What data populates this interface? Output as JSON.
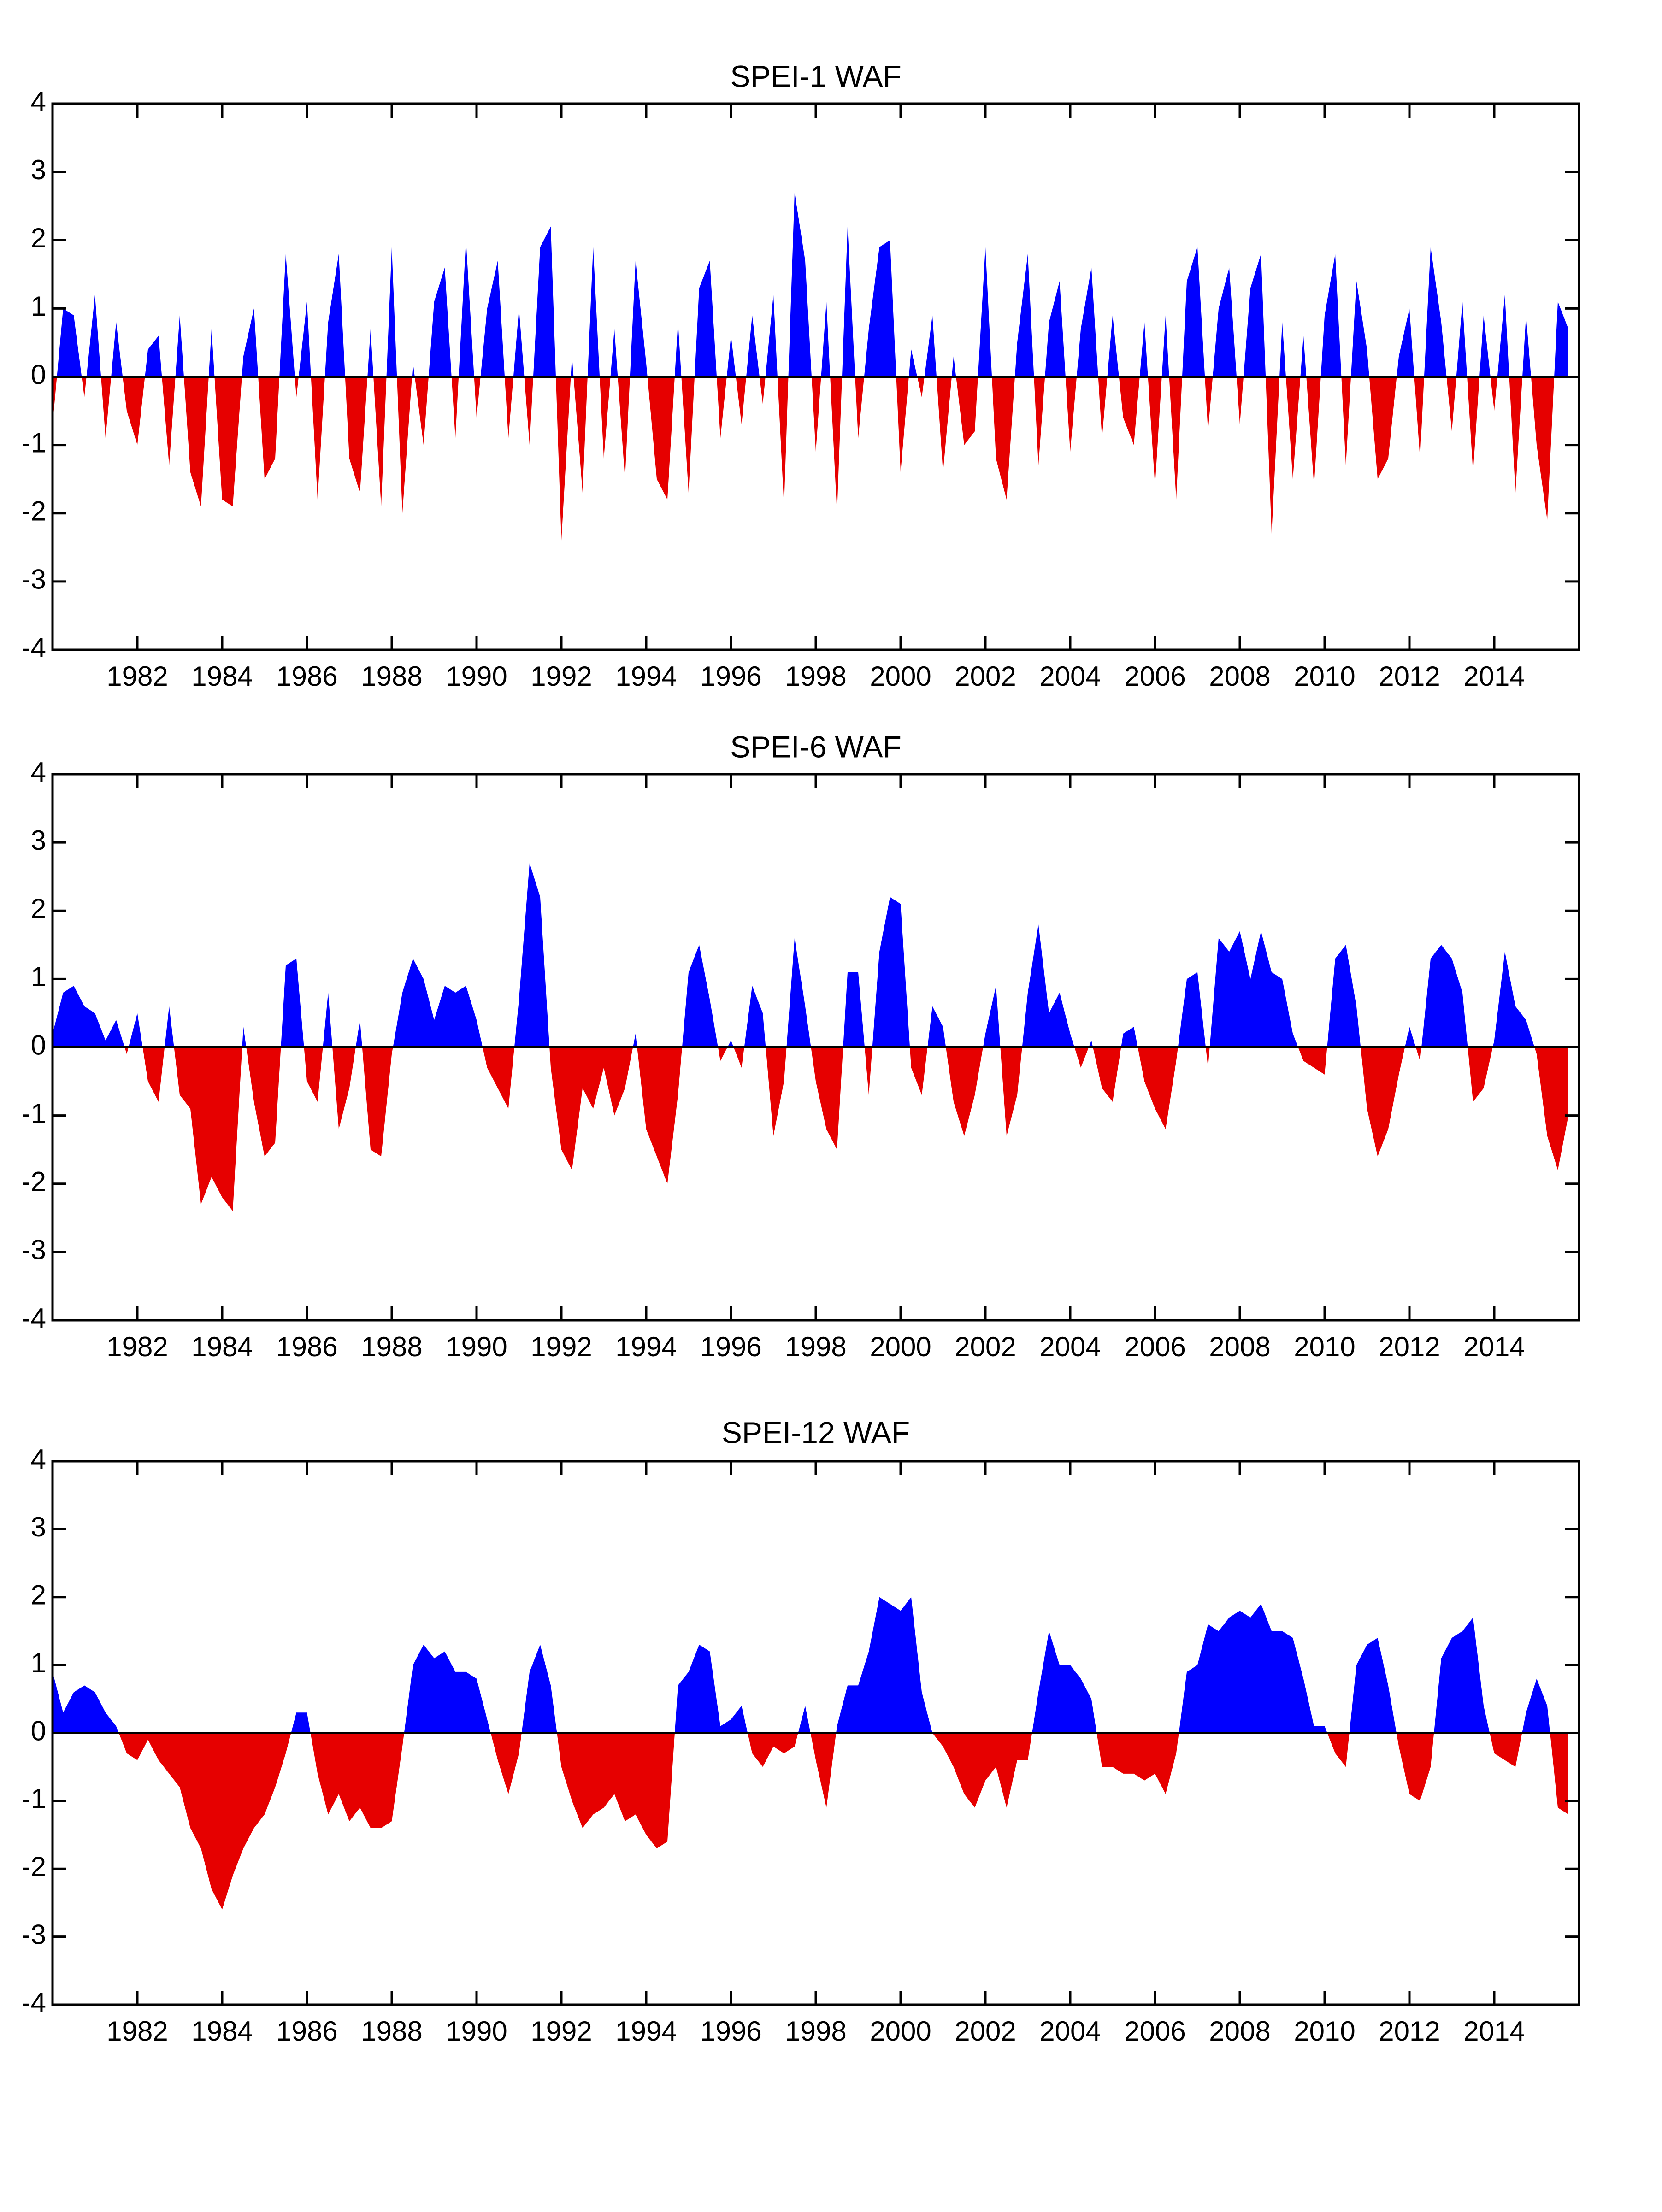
{
  "chart_data": [
    {
      "type": "area",
      "title": "SPEI-1 WAF",
      "pos_color": "#0000ff",
      "neg_color": "#e60000",
      "xlim": [
        1980,
        2016
      ],
      "ylim": [
        -4,
        4
      ],
      "yticks": [
        -4,
        -3,
        -2,
        -1,
        0,
        1,
        2,
        3,
        4
      ],
      "xticks": [
        1982,
        1984,
        1986,
        1988,
        1990,
        1992,
        1994,
        1996,
        1998,
        2000,
        2002,
        2004,
        2006,
        2008,
        2010,
        2012,
        2014
      ],
      "x": [
        1980,
        1980.25,
        1980.5,
        1980.75,
        1981,
        1981.25,
        1981.5,
        1981.75,
        1982,
        1982.25,
        1982.5,
        1982.75,
        1983,
        1983.25,
        1983.5,
        1983.75,
        1984,
        1984.25,
        1984.5,
        1984.75,
        1985,
        1985.25,
        1985.5,
        1985.75,
        1986,
        1986.25,
        1986.5,
        1986.75,
        1987,
        1987.25,
        1987.5,
        1987.75,
        1988,
        1988.25,
        1988.5,
        1988.75,
        1989,
        1989.25,
        1989.5,
        1989.75,
        1990,
        1990.25,
        1990.5,
        1990.75,
        1991,
        1991.25,
        1991.5,
        1991.75,
        1992,
        1992.25,
        1992.5,
        1992.75,
        1993,
        1993.25,
        1993.5,
        1993.75,
        1994,
        1994.25,
        1994.5,
        1994.75,
        1995,
        1995.25,
        1995.5,
        1995.75,
        1996,
        1996.25,
        1996.5,
        1996.75,
        1997,
        1997.25,
        1997.5,
        1997.75,
        1998,
        1998.25,
        1998.5,
        1998.75,
        1999,
        1999.25,
        1999.5,
        1999.75,
        2000,
        2000.25,
        2000.5,
        2000.75,
        2001,
        2001.25,
        2001.5,
        2001.75,
        2002,
        2002.25,
        2002.5,
        2002.75,
        2003,
        2003.25,
        2003.5,
        2003.75,
        2004,
        2004.25,
        2004.5,
        2004.75,
        2005,
        2005.25,
        2005.5,
        2005.75,
        2006,
        2006.25,
        2006.5,
        2006.75,
        2007,
        2007.25,
        2007.5,
        2007.75,
        2008,
        2008.25,
        2008.5,
        2008.75,
        2009,
        2009.25,
        2009.5,
        2009.75,
        2010,
        2010.25,
        2010.5,
        2010.75,
        2011,
        2011.25,
        2011.5,
        2011.75,
        2012,
        2012.25,
        2012.5,
        2012.75,
        2013,
        2013.25,
        2013.5,
        2013.75,
        2014,
        2014.25,
        2014.5,
        2014.75,
        2015,
        2015.25,
        2015.5,
        2015.75
      ],
      "values": [
        -0.7,
        1.0,
        0.9,
        -0.3,
        1.2,
        -0.9,
        0.8,
        -0.5,
        -1.0,
        0.4,
        0.6,
        -1.3,
        0.9,
        -1.4,
        -1.9,
        0.7,
        -1.8,
        -1.9,
        0.3,
        1.0,
        -1.5,
        -1.2,
        1.8,
        -0.3,
        1.1,
        -1.8,
        0.8,
        1.8,
        -1.2,
        -1.7,
        0.7,
        -1.9,
        1.9,
        -2.0,
        0.2,
        -1.0,
        1.1,
        1.6,
        -0.9,
        2.0,
        -0.6,
        1.0,
        1.7,
        -0.9,
        1.0,
        -1.0,
        1.9,
        2.2,
        -2.4,
        0.3,
        -1.7,
        1.9,
        -1.2,
        0.7,
        -1.5,
        1.7,
        0.2,
        -1.5,
        -1.8,
        0.8,
        -1.7,
        1.3,
        1.7,
        -0.9,
        0.6,
        -0.7,
        0.9,
        -0.4,
        1.2,
        -1.9,
        2.7,
        1.7,
        -1.1,
        1.1,
        -2.0,
        2.2,
        -0.9,
        0.7,
        1.9,
        2.0,
        -1.4,
        0.4,
        -0.3,
        0.9,
        -1.4,
        0.3,
        -1.0,
        -0.8,
        1.9,
        -1.2,
        -1.8,
        0.5,
        1.8,
        -1.3,
        0.8,
        1.4,
        -1.1,
        0.7,
        1.6,
        -0.9,
        0.9,
        -0.6,
        -1.0,
        0.8,
        -1.6,
        0.9,
        -1.8,
        1.4,
        1.9,
        -0.8,
        1.0,
        1.6,
        -0.7,
        1.3,
        1.8,
        -2.3,
        0.8,
        -1.5,
        0.6,
        -1.6,
        0.9,
        1.8,
        -1.3,
        1.4,
        0.4,
        -1.5,
        -1.2,
        0.3,
        1.0,
        -1.2,
        1.9,
        0.8,
        -0.8,
        1.1,
        -1.4,
        0.9,
        -0.5,
        1.2,
        -1.7,
        0.9,
        -1.0,
        -2.1,
        1.1,
        0.7
      ]
    },
    {
      "type": "area",
      "title": "SPEI-6 WAF",
      "pos_color": "#0000ff",
      "neg_color": "#e60000",
      "xlim": [
        1980,
        2016
      ],
      "ylim": [
        -4,
        4
      ],
      "yticks": [
        -4,
        -3,
        -2,
        -1,
        0,
        1,
        2,
        3,
        4
      ],
      "xticks": [
        1982,
        1984,
        1986,
        1988,
        1990,
        1992,
        1994,
        1996,
        1998,
        2000,
        2002,
        2004,
        2006,
        2008,
        2010,
        2012,
        2014
      ],
      "x": [
        1980,
        1980.25,
        1980.5,
        1980.75,
        1981,
        1981.25,
        1981.5,
        1981.75,
        1982,
        1982.25,
        1982.5,
        1982.75,
        1983,
        1983.25,
        1983.5,
        1983.75,
        1984,
        1984.25,
        1984.5,
        1984.75,
        1985,
        1985.25,
        1985.5,
        1985.75,
        1986,
        1986.25,
        1986.5,
        1986.75,
        1987,
        1987.25,
        1987.5,
        1987.75,
        1988,
        1988.25,
        1988.5,
        1988.75,
        1989,
        1989.25,
        1989.5,
        1989.75,
        1990,
        1990.25,
        1990.5,
        1990.75,
        1991,
        1991.25,
        1991.5,
        1991.75,
        1992,
        1992.25,
        1992.5,
        1992.75,
        1993,
        1993.25,
        1993.5,
        1993.75,
        1994,
        1994.25,
        1994.5,
        1994.75,
        1995,
        1995.25,
        1995.5,
        1995.75,
        1996,
        1996.25,
        1996.5,
        1996.75,
        1997,
        1997.25,
        1997.5,
        1997.75,
        1998,
        1998.25,
        1998.5,
        1998.75,
        1999,
        1999.25,
        1999.5,
        1999.75,
        2000,
        2000.25,
        2000.5,
        2000.75,
        2001,
        2001.25,
        2001.5,
        2001.75,
        2002,
        2002.25,
        2002.5,
        2002.75,
        2003,
        2003.25,
        2003.5,
        2003.75,
        2004,
        2004.25,
        2004.5,
        2004.75,
        2005,
        2005.25,
        2005.5,
        2005.75,
        2006,
        2006.25,
        2006.5,
        2006.75,
        2007,
        2007.25,
        2007.5,
        2007.75,
        2008,
        2008.25,
        2008.5,
        2008.75,
        2009,
        2009.25,
        2009.5,
        2009.75,
        2010,
        2010.25,
        2010.5,
        2010.75,
        2011,
        2011.25,
        2011.5,
        2011.75,
        2012,
        2012.25,
        2012.5,
        2012.75,
        2013,
        2013.25,
        2013.5,
        2013.75,
        2014,
        2014.25,
        2014.5,
        2014.75,
        2015,
        2015.25,
        2015.5,
        2015.75
      ],
      "values": [
        0.2,
        0.8,
        0.9,
        0.6,
        0.5,
        0.1,
        0.4,
        -0.1,
        0.5,
        -0.5,
        -0.8,
        0.6,
        -0.7,
        -0.9,
        -2.3,
        -1.9,
        -2.2,
        -2.4,
        0.3,
        -0.8,
        -1.6,
        -1.4,
        1.2,
        1.3,
        -0.5,
        -0.8,
        0.8,
        -1.2,
        -0.6,
        0.4,
        -1.5,
        -1.6,
        -0.1,
        0.8,
        1.3,
        1.0,
        0.4,
        0.9,
        0.8,
        0.9,
        0.4,
        -0.3,
        -0.6,
        -0.9,
        0.7,
        2.7,
        2.2,
        -0.3,
        -1.5,
        -1.8,
        -0.6,
        -0.9,
        -0.3,
        -1.0,
        -0.6,
        0.2,
        -1.2,
        -1.6,
        -2.0,
        -0.7,
        1.1,
        1.5,
        0.7,
        -0.2,
        0.1,
        -0.3,
        0.9,
        0.5,
        -1.3,
        -0.5,
        1.6,
        0.6,
        -0.5,
        -1.2,
        -1.5,
        1.1,
        1.1,
        -0.7,
        1.4,
        2.2,
        2.1,
        -0.3,
        -0.7,
        0.6,
        0.3,
        -0.8,
        -1.3,
        -0.7,
        0.2,
        0.9,
        -1.3,
        -0.7,
        0.8,
        1.8,
        0.5,
        0.8,
        0.2,
        -0.3,
        0.1,
        -0.6,
        -0.8,
        0.2,
        0.3,
        -0.5,
        -0.9,
        -1.2,
        -0.2,
        1.0,
        1.1,
        -0.3,
        1.6,
        1.4,
        1.7,
        1.0,
        1.7,
        1.1,
        1.0,
        0.2,
        -0.2,
        -0.3,
        -0.4,
        1.3,
        1.5,
        0.6,
        -0.9,
        -1.6,
        -1.2,
        -0.4,
        0.3,
        -0.2,
        1.3,
        1.5,
        1.3,
        0.8,
        -0.8,
        -0.6,
        0.1,
        1.4,
        0.6,
        0.4,
        -0.1,
        -1.3,
        -1.8,
        -1.0
      ]
    },
    {
      "type": "area",
      "title": "SPEI-12 WAF",
      "pos_color": "#0000ff",
      "neg_color": "#e60000",
      "xlim": [
        1980,
        2016
      ],
      "ylim": [
        -4,
        4
      ],
      "yticks": [
        -4,
        -3,
        -2,
        -1,
        0,
        1,
        2,
        3,
        4
      ],
      "xticks": [
        1982,
        1984,
        1986,
        1988,
        1990,
        1992,
        1994,
        1996,
        1998,
        2000,
        2002,
        2004,
        2006,
        2008,
        2010,
        2012,
        2014
      ],
      "x": [
        1980,
        1980.25,
        1980.5,
        1980.75,
        1981,
        1981.25,
        1981.5,
        1981.75,
        1982,
        1982.25,
        1982.5,
        1982.75,
        1983,
        1983.25,
        1983.5,
        1983.75,
        1984,
        1984.25,
        1984.5,
        1984.75,
        1985,
        1985.25,
        1985.5,
        1985.75,
        1986,
        1986.25,
        1986.5,
        1986.75,
        1987,
        1987.25,
        1987.5,
        1987.75,
        1988,
        1988.25,
        1988.5,
        1988.75,
        1989,
        1989.25,
        1989.5,
        1989.75,
        1990,
        1990.25,
        1990.5,
        1990.75,
        1991,
        1991.25,
        1991.5,
        1991.75,
        1992,
        1992.25,
        1992.5,
        1992.75,
        1993,
        1993.25,
        1993.5,
        1993.75,
        1994,
        1994.25,
        1994.5,
        1994.75,
        1995,
        1995.25,
        1995.5,
        1995.75,
        1996,
        1996.25,
        1996.5,
        1996.75,
        1997,
        1997.25,
        1997.5,
        1997.75,
        1998,
        1998.25,
        1998.5,
        1998.75,
        1999,
        1999.25,
        1999.5,
        1999.75,
        2000,
        2000.25,
        2000.5,
        2000.75,
        2001,
        2001.25,
        2001.5,
        2001.75,
        2002,
        2002.25,
        2002.5,
        2002.75,
        2003,
        2003.25,
        2003.5,
        2003.75,
        2004,
        2004.25,
        2004.5,
        2004.75,
        2005,
        2005.25,
        2005.5,
        2005.75,
        2006,
        2006.25,
        2006.5,
        2006.75,
        2007,
        2007.25,
        2007.5,
        2007.75,
        2008,
        2008.25,
        2008.5,
        2008.75,
        2009,
        2009.25,
        2009.5,
        2009.75,
        2010,
        2010.25,
        2010.5,
        2010.75,
        2011,
        2011.25,
        2011.5,
        2011.75,
        2012,
        2012.25,
        2012.5,
        2012.75,
        2013,
        2013.25,
        2013.5,
        2013.75,
        2014,
        2014.25,
        2014.5,
        2014.75,
        2015,
        2015.25,
        2015.5,
        2015.75
      ],
      "values": [
        0.9,
        0.3,
        0.6,
        0.7,
        0.6,
        0.3,
        0.1,
        -0.3,
        -0.4,
        -0.1,
        -0.4,
        -0.6,
        -0.8,
        -1.4,
        -1.7,
        -2.3,
        -2.6,
        -2.1,
        -1.7,
        -1.4,
        -1.2,
        -0.8,
        -0.3,
        0.3,
        0.3,
        -0.6,
        -1.2,
        -0.9,
        -1.3,
        -1.1,
        -1.4,
        -1.4,
        -1.3,
        -0.2,
        1.0,
        1.3,
        1.1,
        1.2,
        0.9,
        0.9,
        0.8,
        0.2,
        -0.4,
        -0.9,
        -0.3,
        0.9,
        1.3,
        0.7,
        -0.5,
        -1.0,
        -1.4,
        -1.2,
        -1.1,
        -0.9,
        -1.3,
        -1.2,
        -1.5,
        -1.7,
        -1.6,
        0.7,
        0.9,
        1.3,
        1.2,
        0.1,
        0.2,
        0.4,
        -0.3,
        -0.5,
        -0.2,
        -0.3,
        -0.2,
        0.4,
        -0.4,
        -1.1,
        0.1,
        0.7,
        0.7,
        1.2,
        2.0,
        1.9,
        1.8,
        2.0,
        0.6,
        0.0,
        -0.2,
        -0.5,
        -0.9,
        -1.1,
        -0.7,
        -0.5,
        -1.1,
        -0.4,
        -0.4,
        0.6,
        1.5,
        1.0,
        1.0,
        0.8,
        0.5,
        -0.5,
        -0.5,
        -0.6,
        -0.6,
        -0.7,
        -0.6,
        -0.9,
        -0.3,
        0.9,
        1.0,
        1.6,
        1.5,
        1.7,
        1.8,
        1.7,
        1.9,
        1.5,
        1.5,
        1.4,
        0.8,
        0.1,
        0.1,
        -0.3,
        -0.5,
        1.0,
        1.3,
        1.4,
        0.7,
        -0.2,
        -0.9,
        -1.0,
        -0.5,
        1.1,
        1.4,
        1.5,
        1.7,
        0.4,
        -0.3,
        -0.4,
        -0.5,
        0.3,
        0.8,
        0.4,
        -1.1,
        -1.2
      ]
    }
  ]
}
